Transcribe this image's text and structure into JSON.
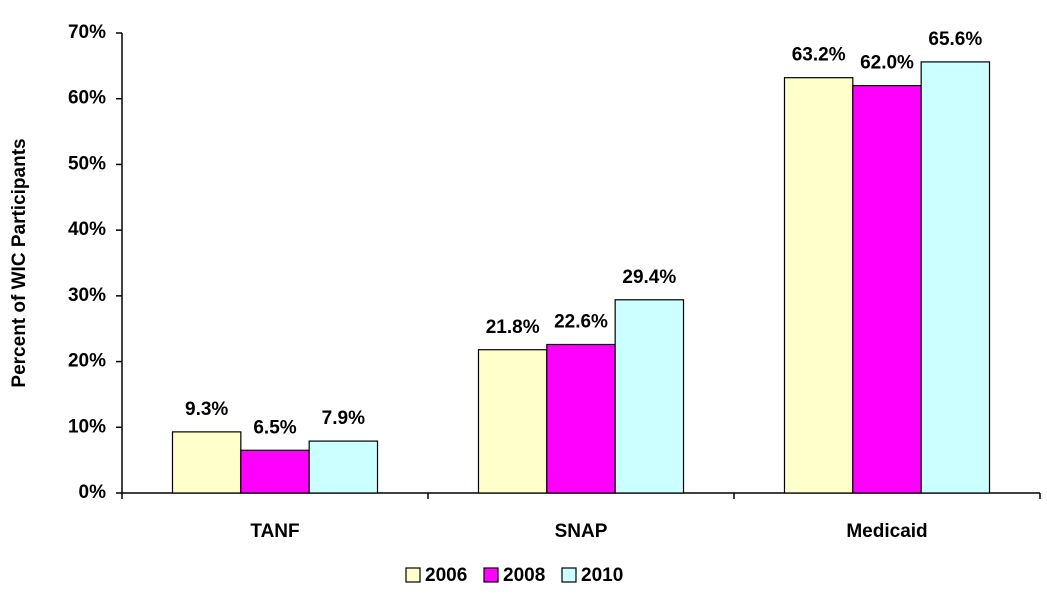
{
  "chart_data": {
    "type": "bar",
    "y_label": "Percent of WIC Participants",
    "categories": [
      "TANF",
      "SNAP",
      "Medicaid"
    ],
    "series": [
      {
        "name": "2006",
        "color": "#ffffcc",
        "values": [
          9.3,
          21.8,
          63.2
        ],
        "value_labels": [
          "9.3%",
          "21.8%",
          "63.2%"
        ]
      },
      {
        "name": "2008",
        "color": "#ff00ff",
        "values": [
          6.5,
          22.6,
          62.0
        ],
        "value_labels": [
          "6.5%",
          "22.6%",
          "62.0%"
        ]
      },
      {
        "name": "2010",
        "color": "#ccffff",
        "values": [
          7.9,
          29.4,
          65.6
        ],
        "value_labels": [
          "7.9%",
          "29.4%",
          "65.6%"
        ]
      }
    ],
    "ylim": [
      0,
      70
    ],
    "yticks": [
      {
        "value": 0,
        "label": "0%"
      },
      {
        "value": 10,
        "label": "10%"
      },
      {
        "value": 20,
        "label": "20%"
      },
      {
        "value": 30,
        "label": "30%"
      },
      {
        "value": 40,
        "label": "40%"
      },
      {
        "value": 50,
        "label": "50%"
      },
      {
        "value": 60,
        "label": "60%"
      },
      {
        "value": 70,
        "label": "70%"
      }
    ],
    "legend": "bottom"
  }
}
